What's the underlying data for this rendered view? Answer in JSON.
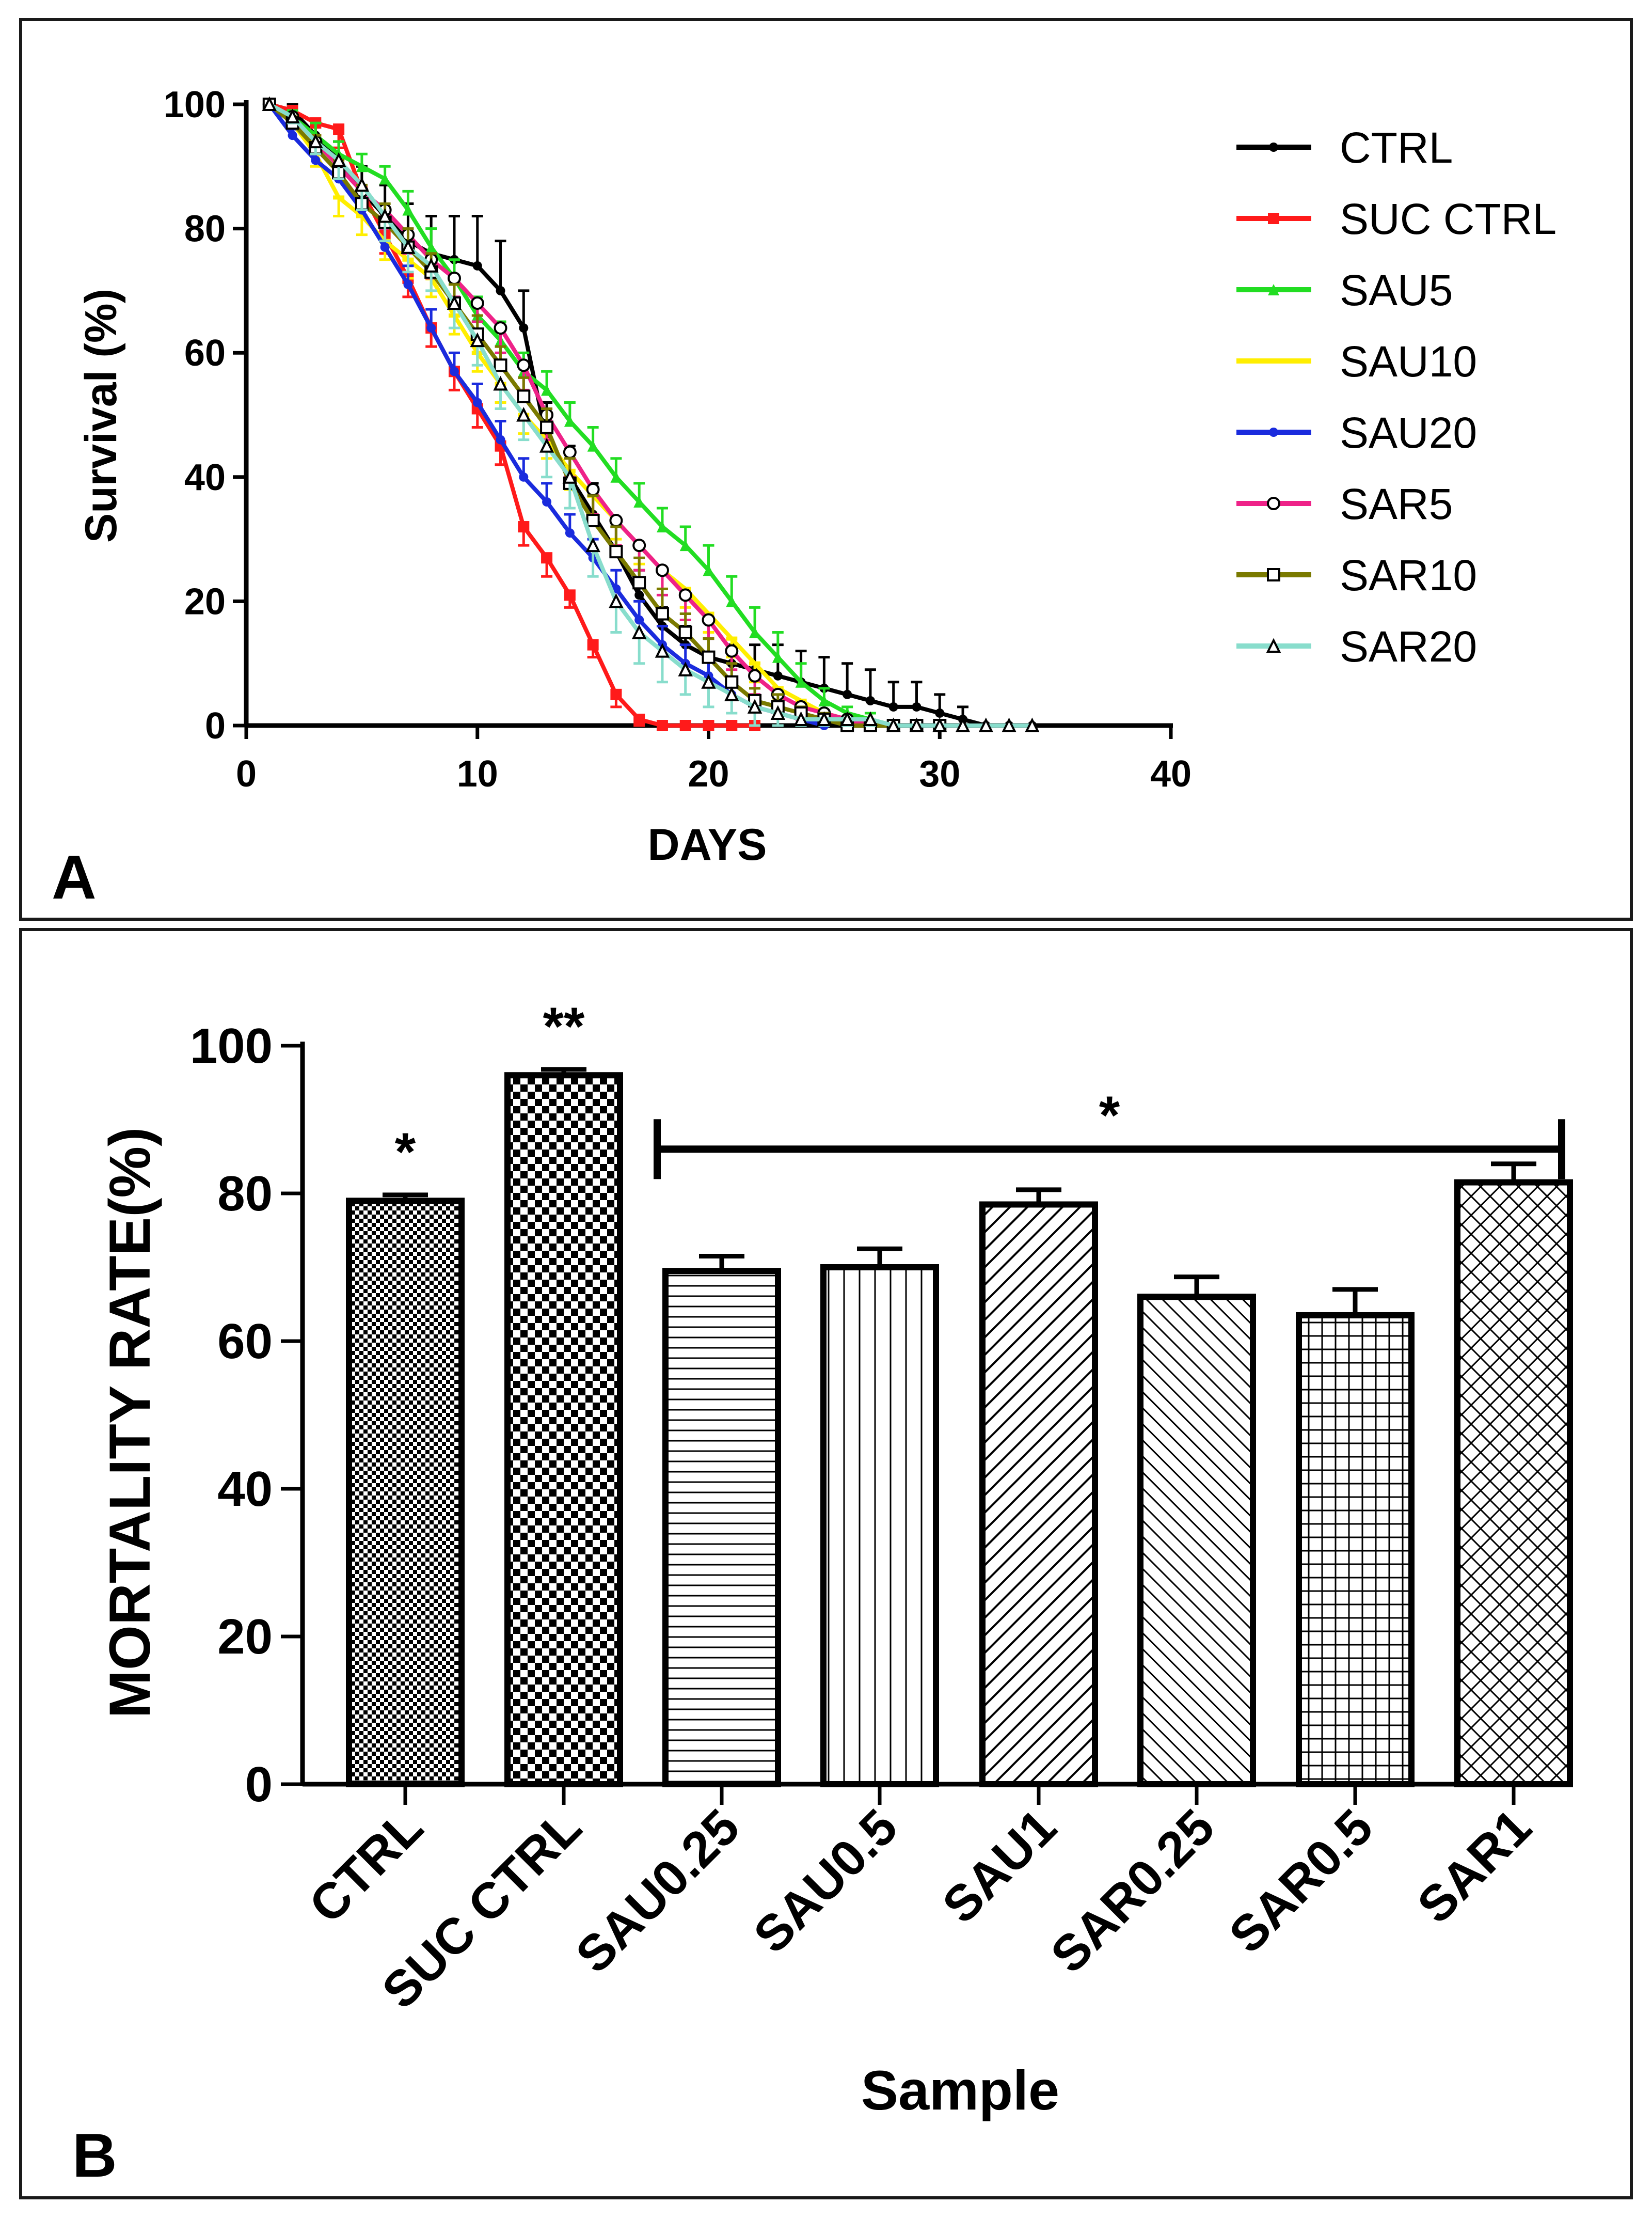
{
  "panels": {
    "a": {
      "letter": "A"
    },
    "b": {
      "letter": "B"
    }
  },
  "chart_data": [
    {
      "type": "line",
      "panel": "A",
      "title": "",
      "xlabel": "DAYS",
      "ylabel": "Survival (%)",
      "xlim": [
        0,
        40
      ],
      "ylim": [
        0,
        100
      ],
      "xticks": [
        0,
        10,
        20,
        30,
        40
      ],
      "yticks": [
        0,
        20,
        40,
        60,
        80,
        100
      ],
      "grid": false,
      "legend_position": "right",
      "series": [
        {
          "name": "CTRL",
          "color": "#000000",
          "marker": "dot",
          "x": [
            1,
            2,
            3,
            4,
            5,
            6,
            7,
            8,
            9,
            10,
            11,
            12,
            13,
            14,
            15,
            16,
            17,
            18,
            19,
            20,
            21,
            22,
            23,
            24,
            25,
            26,
            27,
            28,
            29,
            30,
            31,
            32,
            33,
            34
          ],
          "y": [
            100,
            99,
            95,
            91,
            86,
            82,
            78,
            76,
            75,
            74,
            70,
            64,
            46,
            40,
            34,
            28,
            21,
            16,
            13,
            11,
            10,
            9,
            8,
            7,
            6,
            5,
            4,
            3,
            3,
            2,
            1,
            0,
            0,
            0
          ],
          "err": [
            0,
            1,
            2,
            3,
            4,
            5,
            6,
            6,
            7,
            8,
            8,
            6,
            6,
            5,
            5,
            4,
            4,
            3,
            3,
            3,
            3,
            4,
            5,
            5,
            5,
            5,
            5,
            4,
            4,
            3,
            2,
            0,
            0,
            0
          ]
        },
        {
          "name": "SUC CTRL",
          "color": "#ff1a1a",
          "marker": "square",
          "x": [
            1,
            2,
            3,
            4,
            5,
            6,
            7,
            8,
            9,
            10,
            11,
            12,
            13,
            14,
            15,
            16,
            17,
            18,
            19,
            20,
            21,
            22
          ],
          "y": [
            100,
            99,
            97,
            96,
            86,
            79,
            72,
            64,
            57,
            51,
            45,
            32,
            27,
            21,
            13,
            5,
            1,
            0,
            0,
            0,
            0,
            0
          ],
          "err": [
            0,
            1,
            2,
            3,
            3,
            3,
            3,
            3,
            3,
            3,
            3,
            3,
            3,
            2,
            2,
            2,
            1,
            0,
            0,
            0,
            0,
            0
          ]
        },
        {
          "name": "SAU5",
          "color": "#22dd22",
          "marker": "triangle",
          "x": [
            1,
            2,
            3,
            4,
            5,
            6,
            7,
            8,
            9,
            10,
            11,
            12,
            13,
            14,
            15,
            16,
            17,
            18,
            19,
            20,
            21,
            22,
            23,
            24,
            25,
            26,
            27,
            28,
            29,
            30
          ],
          "y": [
            100,
            98,
            95,
            92,
            90,
            88,
            83,
            77,
            72,
            66,
            62,
            57,
            54,
            49,
            45,
            40,
            36,
            32,
            29,
            25,
            20,
            15,
            11,
            7,
            4,
            2,
            1,
            0,
            0,
            0
          ],
          "err": [
            0,
            1,
            2,
            2,
            2,
            2,
            3,
            3,
            3,
            3,
            3,
            3,
            3,
            3,
            3,
            3,
            3,
            3,
            3,
            4,
            4,
            4,
            4,
            3,
            2,
            1,
            1,
            0,
            0,
            0
          ]
        },
        {
          "name": "SAU10",
          "color": "#ffee00",
          "marker": "dash",
          "x": [
            1,
            2,
            3,
            4,
            5,
            6,
            7,
            8,
            9,
            10,
            11,
            12,
            13,
            14,
            15,
            16,
            17,
            18,
            19,
            20,
            21,
            22,
            23,
            24,
            25,
            26,
            27,
            28,
            29,
            30
          ],
          "y": [
            100,
            97,
            92,
            85,
            82,
            78,
            75,
            72,
            66,
            60,
            55,
            50,
            46,
            41,
            37,
            33,
            29,
            25,
            22,
            18,
            14,
            10,
            6,
            4,
            2,
            1,
            0,
            0,
            0,
            0
          ],
          "err": [
            0,
            1,
            2,
            3,
            3,
            3,
            3,
            3,
            3,
            3,
            3,
            3,
            3,
            3,
            3,
            3,
            3,
            3,
            3,
            3,
            3,
            3,
            2,
            2,
            1,
            1,
            0,
            0,
            0,
            0
          ]
        },
        {
          "name": "SAU20",
          "color": "#1a2bdd",
          "marker": "dot",
          "x": [
            1,
            2,
            3,
            4,
            5,
            6,
            7,
            8,
            9,
            10,
            11,
            12,
            13,
            14,
            15,
            16,
            17,
            18,
            19,
            20,
            21,
            22,
            23,
            24,
            25
          ],
          "y": [
            100,
            95,
            91,
            88,
            83,
            77,
            71,
            64,
            57,
            52,
            46,
            40,
            36,
            31,
            27,
            22,
            17,
            13,
            10,
            8,
            5,
            3,
            2,
            1,
            0
          ],
          "err": [
            0,
            1,
            2,
            2,
            3,
            3,
            3,
            3,
            3,
            3,
            3,
            3,
            3,
            3,
            3,
            3,
            3,
            3,
            3,
            3,
            2,
            2,
            1,
            1,
            0
          ]
        },
        {
          "name": "SAR5",
          "color": "#ee2288",
          "marker": "circle",
          "x": [
            1,
            2,
            3,
            4,
            5,
            6,
            7,
            8,
            9,
            10,
            11,
            12,
            13,
            14,
            15,
            16,
            17,
            18,
            19,
            20,
            21,
            22,
            23,
            24,
            25,
            26,
            27,
            28,
            29,
            30
          ],
          "y": [
            100,
            98,
            94,
            90,
            86,
            83,
            79,
            75,
            72,
            68,
            64,
            58,
            50,
            44,
            38,
            33,
            29,
            25,
            21,
            17,
            12,
            8,
            5,
            3,
            2,
            1,
            0,
            0,
            0,
            0
          ],
          "err": [
            0,
            1,
            2,
            2,
            3,
            3,
            3,
            3,
            3,
            3,
            4,
            4,
            4,
            4,
            4,
            4,
            4,
            4,
            4,
            3,
            3,
            3,
            2,
            2,
            1,
            1,
            0,
            0,
            0,
            0
          ]
        },
        {
          "name": "SAR10",
          "color": "#7a7a00",
          "marker": "square-open",
          "x": [
            1,
            2,
            3,
            4,
            5,
            6,
            7,
            8,
            9,
            10,
            11,
            12,
            13,
            14,
            15,
            16,
            17,
            18,
            19,
            20,
            21,
            22,
            23,
            24,
            25,
            26,
            27,
            28,
            29,
            30
          ],
          "y": [
            100,
            97,
            93,
            89,
            84,
            81,
            77,
            73,
            68,
            63,
            58,
            53,
            48,
            39,
            33,
            28,
            23,
            18,
            15,
            11,
            7,
            4,
            3,
            2,
            1,
            0,
            0,
            0,
            0,
            0
          ],
          "err": [
            0,
            1,
            2,
            2,
            3,
            3,
            3,
            3,
            3,
            3,
            3,
            3,
            3,
            4,
            4,
            4,
            4,
            4,
            3,
            3,
            3,
            2,
            2,
            1,
            1,
            0,
            0,
            0,
            0,
            0
          ]
        },
        {
          "name": "SAR20",
          "color": "#88ddcc",
          "marker": "triangle-open",
          "x": [
            1,
            2,
            3,
            4,
            5,
            6,
            7,
            8,
            9,
            10,
            11,
            12,
            13,
            14,
            15,
            16,
            17,
            18,
            19,
            20,
            21,
            22,
            23,
            24,
            25,
            26,
            27,
            28,
            29,
            30,
            31,
            32,
            33,
            34
          ],
          "y": [
            100,
            98,
            94,
            91,
            87,
            82,
            77,
            74,
            68,
            62,
            55,
            50,
            45,
            40,
            29,
            20,
            15,
            12,
            9,
            7,
            5,
            3,
            2,
            1,
            1,
            1,
            1,
            0,
            0,
            0,
            0,
            0,
            0,
            0
          ],
          "err": [
            0,
            1,
            2,
            3,
            4,
            4,
            4,
            4,
            4,
            4,
            4,
            4,
            5,
            5,
            5,
            5,
            5,
            5,
            4,
            4,
            3,
            3,
            2,
            1,
            1,
            1,
            1,
            0,
            0,
            0,
            0,
            0,
            0,
            0
          ]
        }
      ]
    },
    {
      "type": "bar",
      "panel": "B",
      "title": "",
      "xlabel": "Sample",
      "ylabel": "MORTALITY RATE(%)",
      "ylim": [
        0,
        100
      ],
      "yticks": [
        0,
        20,
        40,
        60,
        80,
        100
      ],
      "grid": false,
      "categories": [
        "CTRL",
        "SUC CTRL",
        "SAU0.25",
        "SAU0.5",
        "SAU1",
        "SAR0.25",
        "SAR0.5",
        "SAR1"
      ],
      "values": [
        79,
        96,
        69.5,
        70,
        78.5,
        66,
        63.5,
        81.5
      ],
      "errors": [
        0.8,
        0.8,
        2,
        2.5,
        2,
        2.7,
        3.5,
        2.5
      ],
      "patterns": [
        "fine-check",
        "check",
        "horizontal",
        "vertical",
        "diagonal-up",
        "diagonal-down",
        "grid",
        "cross-hatch"
      ],
      "annotations": [
        {
          "text": "*",
          "category": "CTRL"
        },
        {
          "text": "**",
          "category": "SUC CTRL"
        },
        {
          "text": "*",
          "bracket_from": "SAU0.25",
          "bracket_to": "SAR1",
          "level": 86
        }
      ]
    }
  ]
}
